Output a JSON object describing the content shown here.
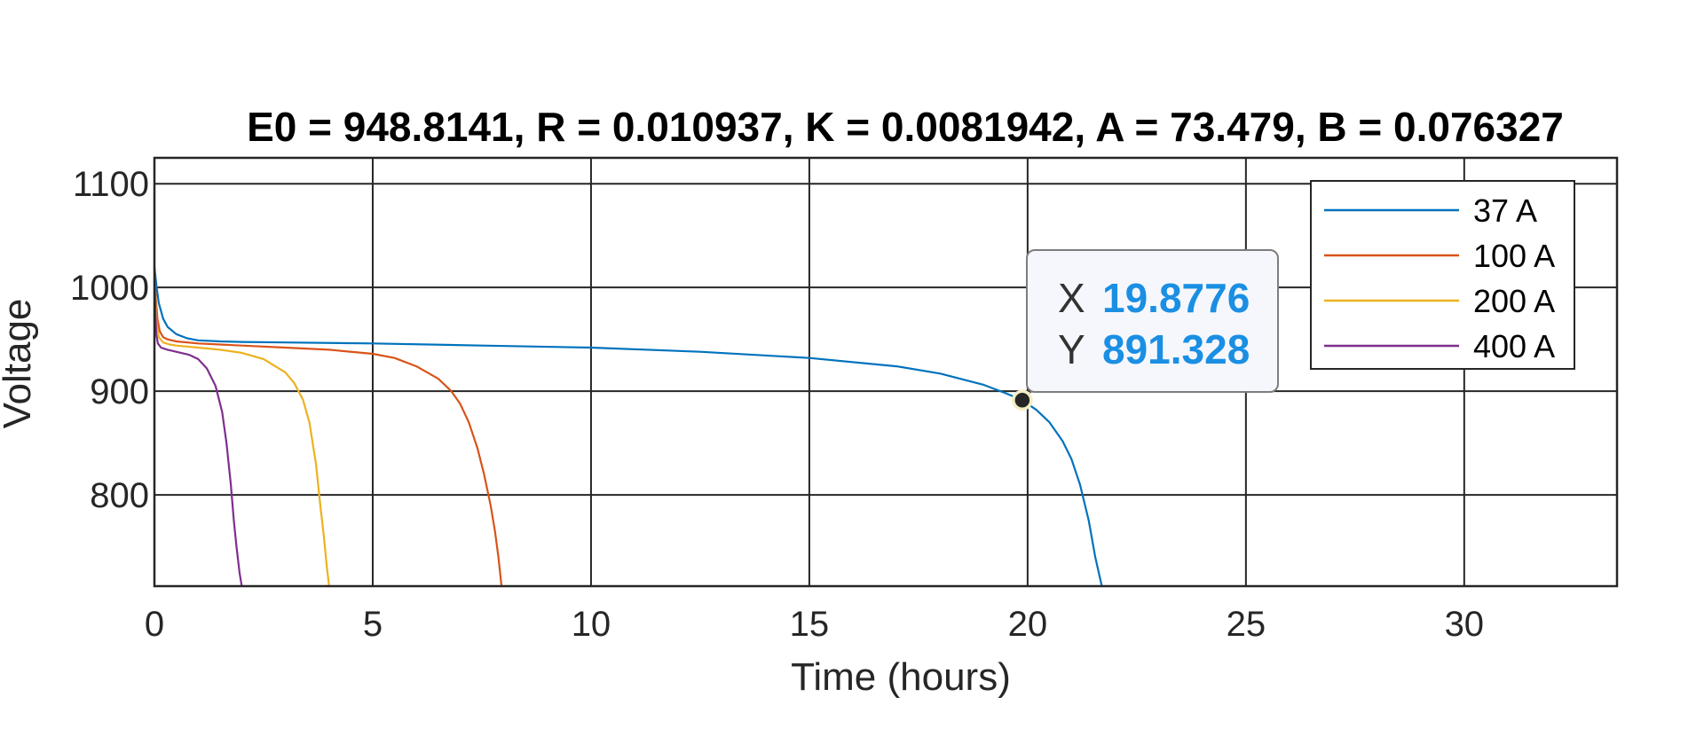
{
  "chart_data": {
    "type": "line",
    "title": "E0 = 948.8141, R = 0.010937, K = 0.0081942, A = 73.479, B = 0.076327",
    "xlabel": "Time (hours)",
    "ylabel": "Voltage",
    "xlim": [
      0,
      33.5
    ],
    "ylim": [
      712,
      1125
    ],
    "xticks": [
      0,
      5,
      10,
      15,
      20,
      25,
      30
    ],
    "yticks": [
      800,
      900,
      1000,
      1100
    ],
    "grid": true,
    "legend_position": "top-right",
    "series": [
      {
        "name": "37 A",
        "color": "#0072BD",
        "x": [
          0,
          0.05,
          0.1,
          0.2,
          0.3,
          0.5,
          0.75,
          1,
          1.5,
          2,
          3,
          5,
          7.5,
          10,
          12.5,
          15,
          17,
          18,
          19,
          19.5,
          19.8776,
          20.2,
          20.5,
          20.8,
          21,
          21.2,
          21.4,
          21.55,
          21.7
        ],
        "values": [
          1020,
          1000,
          985,
          970,
          962,
          955,
          951,
          949,
          948,
          947.5,
          947,
          946,
          944,
          942,
          938,
          932,
          924,
          917,
          906,
          898,
          891.328,
          882,
          870,
          852,
          835,
          810,
          775,
          740,
          712
        ]
      },
      {
        "name": "100 A",
        "color": "#D95319",
        "x": [
          0,
          0.03,
          0.07,
          0.12,
          0.2,
          0.3,
          0.5,
          1,
          2,
          3,
          4,
          5,
          5.5,
          6,
          6.5,
          6.8,
          7,
          7.2,
          7.4,
          7.55,
          7.7,
          7.8,
          7.88,
          7.95
        ],
        "values": [
          1015,
          990,
          970,
          958,
          952,
          950,
          948,
          946,
          944,
          942,
          940,
          936,
          932,
          924,
          912,
          900,
          888,
          870,
          845,
          820,
          790,
          765,
          740,
          712
        ]
      },
      {
        "name": "200 A",
        "color": "#EDB120",
        "x": [
          0,
          0.02,
          0.05,
          0.1,
          0.2,
          0.35,
          0.5,
          1,
          1.5,
          2,
          2.5,
          3,
          3.2,
          3.4,
          3.55,
          3.7,
          3.8,
          3.88,
          3.95,
          4.0
        ],
        "values": [
          1020,
          990,
          965,
          952,
          947,
          945,
          944,
          942,
          940,
          937,
          931,
          918,
          908,
          892,
          870,
          830,
          790,
          760,
          730,
          712
        ]
      },
      {
        "name": "400 A",
        "color": "#7E2F8E",
        "x": [
          0,
          0.02,
          0.04,
          0.08,
          0.15,
          0.3,
          0.5,
          0.8,
          1,
          1.2,
          1.4,
          1.55,
          1.65,
          1.75,
          1.82,
          1.88,
          1.95,
          2.0
        ],
        "values": [
          1020,
          980,
          955,
          946,
          942,
          940,
          938,
          935,
          931,
          922,
          905,
          880,
          850,
          810,
          775,
          750,
          725,
          712
        ]
      }
    ],
    "datatip": {
      "x_label": "X",
      "x_value": "19.8776",
      "y_label": "Y",
      "y_value": "891.328",
      "x": 19.8776,
      "y": 891.328,
      "value_color": "#1A8FE3"
    }
  }
}
